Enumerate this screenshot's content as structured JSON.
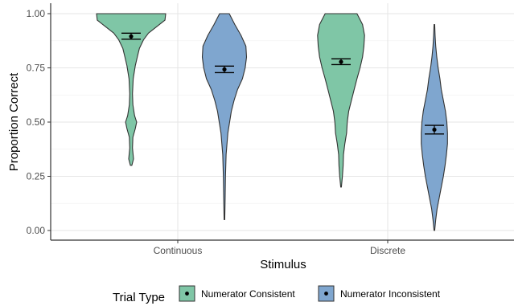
{
  "chart_data": {
    "type": "violin",
    "title": "",
    "xlabel": "Stimulus",
    "ylabel": "Proportion Correct",
    "ylim": [
      0,
      1
    ],
    "yticks": [
      "0.00",
      "0.25",
      "0.50",
      "0.75",
      "1.00"
    ],
    "ytick_values": [
      0,
      0.25,
      0.5,
      0.75,
      1.0
    ],
    "categories": [
      "Continuous",
      "Discrete"
    ],
    "grid": true,
    "legend": {
      "title": "Trial Type",
      "placement": "bottom"
    },
    "series": [
      {
        "name": "Numerator Consistent",
        "color": "#7fc6a6",
        "mean": [
          0.895,
          0.778
        ],
        "ci_low": [
          0.882,
          0.765
        ],
        "ci_high": [
          0.91,
          0.792
        ],
        "range": [
          [
            0.3,
            1.0
          ],
          [
            0.2,
            1.0
          ]
        ],
        "density": [
          [
            [
              0.3,
              0.02
            ],
            [
              0.33,
              0.07
            ],
            [
              0.38,
              0.04
            ],
            [
              0.43,
              0.05
            ],
            [
              0.47,
              0.12
            ],
            [
              0.5,
              0.16
            ],
            [
              0.53,
              0.1
            ],
            [
              0.58,
              0.05
            ],
            [
              0.63,
              0.04
            ],
            [
              0.7,
              0.06
            ],
            [
              0.76,
              0.12
            ],
            [
              0.8,
              0.18
            ],
            [
              0.84,
              0.24
            ],
            [
              0.88,
              0.36
            ],
            [
              0.91,
              0.5
            ],
            [
              0.94,
              0.74
            ],
            [
              0.97,
              0.98
            ],
            [
              1.0,
              1.0
            ]
          ],
          [
            [
              0.2,
              0.01
            ],
            [
              0.25,
              0.04
            ],
            [
              0.3,
              0.06
            ],
            [
              0.35,
              0.07
            ],
            [
              0.4,
              0.11
            ],
            [
              0.45,
              0.16
            ],
            [
              0.5,
              0.18
            ],
            [
              0.55,
              0.22
            ],
            [
              0.6,
              0.3
            ],
            [
              0.65,
              0.38
            ],
            [
              0.7,
              0.46
            ],
            [
              0.75,
              0.55
            ],
            [
              0.8,
              0.62
            ],
            [
              0.85,
              0.66
            ],
            [
              0.9,
              0.68
            ],
            [
              0.95,
              0.62
            ],
            [
              1.0,
              0.46
            ]
          ]
        ]
      },
      {
        "name": "Numerator Inconsistent",
        "color": "#7fa6cf",
        "mean": [
          0.743,
          0.465
        ],
        "ci_low": [
          0.728,
          0.445
        ],
        "ci_high": [
          0.758,
          0.485
        ],
        "range": [
          [
            0.05,
            1.0
          ],
          [
            0.0,
            0.95
          ]
        ],
        "density": [
          [
            [
              0.05,
              0.01
            ],
            [
              0.15,
              0.02
            ],
            [
              0.25,
              0.03
            ],
            [
              0.35,
              0.05
            ],
            [
              0.45,
              0.1
            ],
            [
              0.55,
              0.2
            ],
            [
              0.6,
              0.28
            ],
            [
              0.65,
              0.38
            ],
            [
              0.7,
              0.52
            ],
            [
              0.75,
              0.6
            ],
            [
              0.8,
              0.64
            ],
            [
              0.85,
              0.62
            ],
            [
              0.9,
              0.48
            ],
            [
              0.95,
              0.3
            ],
            [
              1.0,
              0.14
            ]
          ],
          [
            [
              0.0,
              0.01
            ],
            [
              0.05,
              0.04
            ],
            [
              0.1,
              0.08
            ],
            [
              0.15,
              0.14
            ],
            [
              0.2,
              0.2
            ],
            [
              0.25,
              0.26
            ],
            [
              0.3,
              0.31
            ],
            [
              0.35,
              0.35
            ],
            [
              0.4,
              0.38
            ],
            [
              0.45,
              0.38
            ],
            [
              0.5,
              0.36
            ],
            [
              0.55,
              0.32
            ],
            [
              0.6,
              0.26
            ],
            [
              0.65,
              0.2
            ],
            [
              0.7,
              0.16
            ],
            [
              0.75,
              0.11
            ],
            [
              0.8,
              0.07
            ],
            [
              0.85,
              0.04
            ],
            [
              0.9,
              0.02
            ],
            [
              0.95,
              0.01
            ]
          ]
        ]
      }
    ]
  }
}
